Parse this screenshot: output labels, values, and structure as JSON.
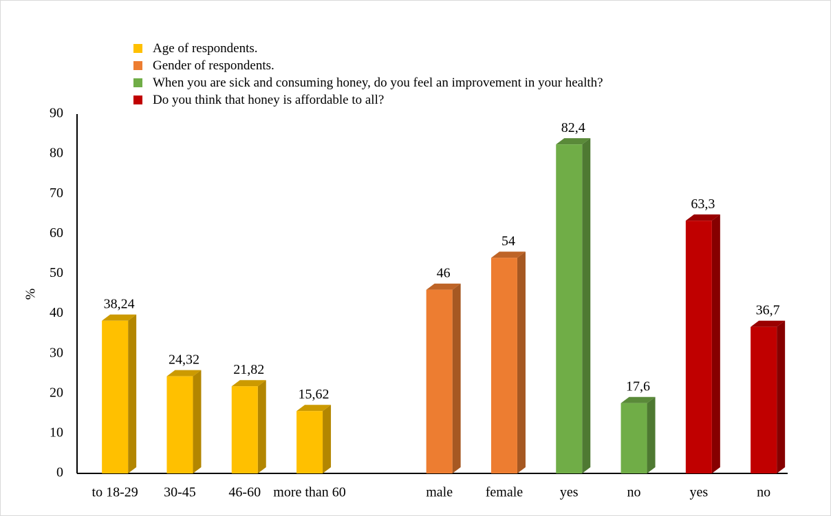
{
  "chart_data": {
    "type": "bar3d",
    "y_label": "%",
    "categories": [
      "to 18-29",
      "30-45",
      "46-60",
      "more than 60",
      null,
      "male",
      "female",
      "yes",
      "no",
      "yes",
      "no"
    ],
    "series": [
      {
        "name": "Age of respondents.",
        "color": "#ffc000",
        "values": [
          38.24,
          24.32,
          21.82,
          15.62,
          null,
          null,
          null,
          null,
          null,
          null,
          null
        ],
        "value_labels": [
          "38,24",
          "24,32",
          "21,82",
          "15,62",
          null,
          null,
          null,
          null,
          null,
          null,
          null
        ]
      },
      {
        "name": "Gender of respondents.",
        "color": "#ed7d31",
        "values": [
          null,
          null,
          null,
          null,
          null,
          46,
          54,
          null,
          null,
          null,
          null
        ],
        "value_labels": [
          null,
          null,
          null,
          null,
          null,
          "46",
          "54",
          null,
          null,
          null,
          null
        ]
      },
      {
        "name": "When you are sick and consuming honey, do you feel an improvement in your health?",
        "color": "#70ad47",
        "values": [
          null,
          null,
          null,
          null,
          null,
          null,
          null,
          82.4,
          17.6,
          null,
          null
        ],
        "value_labels": [
          null,
          null,
          null,
          null,
          null,
          null,
          null,
          "82,4",
          "17,6",
          null,
          null
        ]
      },
      {
        "name": "Do you think that honey is affordable to all?",
        "color": "#c00000",
        "values": [
          null,
          null,
          null,
          null,
          null,
          null,
          null,
          null,
          null,
          63.3,
          36.7
        ],
        "value_labels": [
          null,
          null,
          null,
          null,
          null,
          null,
          null,
          null,
          null,
          "63,3",
          "36,7"
        ]
      }
    ],
    "ylim": [
      0,
      90
    ],
    "yticks": [
      0,
      10,
      20,
      30,
      40,
      50,
      60,
      70,
      80,
      90
    ],
    "grid": false
  }
}
